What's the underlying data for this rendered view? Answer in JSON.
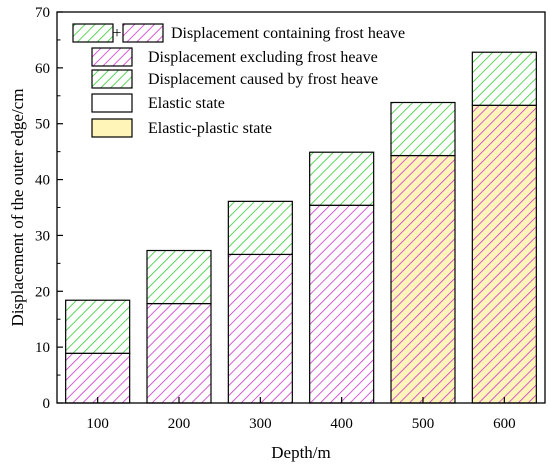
{
  "chart_data": {
    "type": "bar",
    "stacked": true,
    "categories": [
      "100",
      "200",
      "300",
      "400",
      "500",
      "600"
    ],
    "series": [
      {
        "name": "Displacement excluding frost heave",
        "values": [
          8.9,
          17.8,
          26.6,
          35.4,
          44.3,
          53.3
        ],
        "color": "#cc33cc",
        "pattern": "hatch"
      },
      {
        "name": "Displacement caused by frost heave",
        "values": [
          9.5,
          9.5,
          9.5,
          9.5,
          9.5,
          9.5
        ],
        "color": "#33cc33",
        "pattern": "hatch"
      }
    ],
    "state_by_category": [
      "elastic",
      "elastic",
      "elastic",
      "elastic",
      "elastic-plastic",
      "elastic-plastic"
    ],
    "state_fill": {
      "elastic": "#ffffff",
      "elastic-plastic": "#fff5b8"
    },
    "xlabel": "Depth/m",
    "ylabel": "Displacement of the outer edge/cm",
    "ylim": [
      0,
      70
    ],
    "yticks": [
      0,
      10,
      20,
      30,
      40,
      50,
      60,
      70
    ],
    "grid": false,
    "legend": {
      "placement": "top-left",
      "plus": "+",
      "entries": [
        {
          "label": "Displacement containing frost heave",
          "kind": "combined"
        },
        {
          "label": "Displacement excluding frost heave",
          "kind": "excl"
        },
        {
          "label": "Displacement caused by frost heave",
          "kind": "frost"
        },
        {
          "label": "Elastic state",
          "kind": "elastic"
        },
        {
          "label": "Elastic-plastic state",
          "kind": "elastic-plastic"
        }
      ]
    }
  }
}
